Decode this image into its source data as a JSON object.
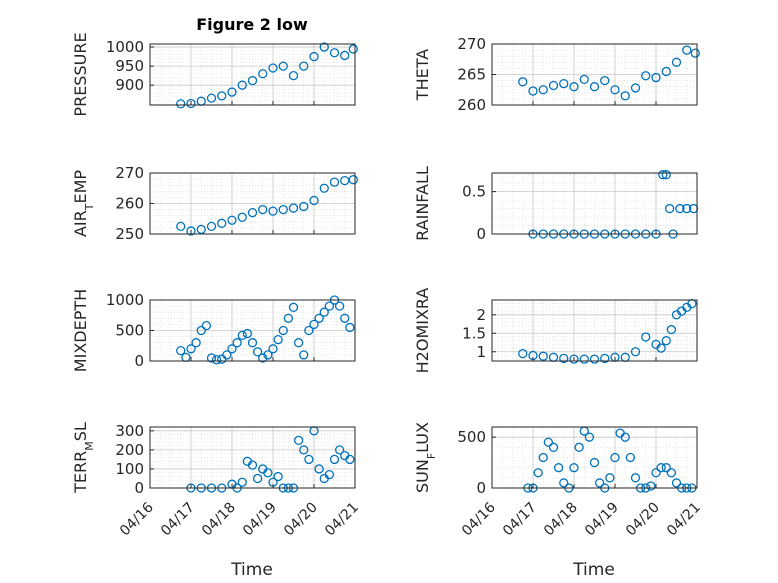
{
  "figure": {
    "title": "Figure 2 low",
    "xlabel": "Time",
    "date_ticks": [
      "04/16",
      "04/17",
      "04/18",
      "04/19",
      "04/20",
      "04/21"
    ],
    "marker_color": "#0072BD",
    "grid": true,
    "minor_grid": true
  },
  "chart_data": [
    {
      "type": "scatter",
      "ylabel": "PRESSURE",
      "xlim": [
        "2023-04-16",
        "2023-04-21"
      ],
      "ylim": [
        848,
        1008
      ],
      "yticks": [
        900,
        950,
        1000
      ],
      "x": [
        "04/16 18:00",
        "04/17 00:00",
        "04/17 06:00",
        "04/17 12:00",
        "04/17 18:00",
        "04/18 00:00",
        "04/18 06:00",
        "04/18 12:00",
        "04/18 18:00",
        "04/19 00:00",
        "04/19 06:00",
        "04/19 12:00",
        "04/19 18:00",
        "04/20 00:00",
        "04/20 06:00",
        "04/20 12:00",
        "04/20 18:00",
        "04/20 23:00"
      ],
      "y": [
        851,
        852,
        858,
        866,
        872,
        882,
        900,
        912,
        930,
        945,
        950,
        925,
        950,
        975,
        1000,
        985,
        978,
        995
      ]
    },
    {
      "type": "scatter",
      "ylabel": "THETA",
      "xlim": [
        "2023-04-16",
        "2023-04-21"
      ],
      "ylim": [
        260,
        270
      ],
      "yticks": [
        260,
        265,
        270
      ],
      "x": [
        "04/16 18:00",
        "04/17 00:00",
        "04/17 06:00",
        "04/17 12:00",
        "04/17 18:00",
        "04/18 00:00",
        "04/18 06:00",
        "04/18 12:00",
        "04/18 18:00",
        "04/19 00:00",
        "04/19 06:00",
        "04/19 12:00",
        "04/19 18:00",
        "04/20 00:00",
        "04/20 06:00",
        "04/20 12:00",
        "04/20 18:00",
        "04/20 23:00"
      ],
      "y": [
        263.8,
        262.3,
        262.5,
        263.2,
        263.5,
        263.0,
        264.2,
        263.0,
        264.0,
        262.5,
        261.5,
        262.8,
        264.8,
        264.5,
        265.5,
        267.0,
        269.0,
        268.5
      ]
    },
    {
      "type": "scatter",
      "ylabel": "AIR_TEMP",
      "xlim": [
        "2023-04-16",
        "2023-04-21"
      ],
      "ylim": [
        250,
        270
      ],
      "yticks": [
        250,
        260,
        270
      ],
      "x": [
        "04/16 18:00",
        "04/17 00:00",
        "04/17 06:00",
        "04/17 12:00",
        "04/17 18:00",
        "04/18 00:00",
        "04/18 06:00",
        "04/18 12:00",
        "04/18 18:00",
        "04/19 00:00",
        "04/19 06:00",
        "04/19 12:00",
        "04/19 18:00",
        "04/20 00:00",
        "04/20 06:00",
        "04/20 12:00",
        "04/20 18:00",
        "04/20 23:00"
      ],
      "y": [
        252.5,
        251.0,
        251.5,
        252.5,
        253.5,
        254.5,
        255.5,
        257.0,
        258.0,
        257.5,
        258.0,
        258.5,
        259.0,
        261.0,
        265.0,
        267.0,
        267.5,
        267.8
      ]
    },
    {
      "type": "scatter",
      "ylabel": "RAINFALL",
      "xlim": [
        "2023-04-16",
        "2023-04-21"
      ],
      "ylim": [
        0,
        0.72
      ],
      "yticks": [
        0,
        0.5
      ],
      "x": [
        "04/17 00:00",
        "04/17 06:00",
        "04/17 12:00",
        "04/17 18:00",
        "04/18 00:00",
        "04/18 06:00",
        "04/18 12:00",
        "04/18 18:00",
        "04/19 00:00",
        "04/19 06:00",
        "04/19 12:00",
        "04/19 18:00",
        "04/20 00:00",
        "04/20 04:00",
        "04/20 06:00",
        "04/20 08:00",
        "04/20 10:00",
        "04/20 14:00",
        "04/20 18:00",
        "04/20 22:00"
      ],
      "y": [
        0,
        0,
        0,
        0,
        0,
        0,
        0,
        0,
        0,
        0,
        0,
        0,
        0,
        0.7,
        0.7,
        0.3,
        0,
        0.3,
        0.3,
        0.3
      ]
    },
    {
      "type": "scatter",
      "ylabel": "MIXDEPTH",
      "xlim": [
        "2023-04-16",
        "2023-04-21"
      ],
      "ylim": [
        0,
        1000
      ],
      "yticks": [
        0,
        500,
        1000
      ],
      "x": [
        "04/16 18:00",
        "04/16 21:00",
        "04/17 00:00",
        "04/17 03:00",
        "04/17 06:00",
        "04/17 09:00",
        "04/17 12:00",
        "04/17 15:00",
        "04/17 18:00",
        "04/17 21:00",
        "04/18 00:00",
        "04/18 03:00",
        "04/18 06:00",
        "04/18 09:00",
        "04/18 12:00",
        "04/18 15:00",
        "04/18 18:00",
        "04/18 21:00",
        "04/19 00:00",
        "04/19 03:00",
        "04/19 06:00",
        "04/19 09:00",
        "04/19 12:00",
        "04/19 15:00",
        "04/19 18:00",
        "04/19 21:00",
        "04/20 00:00",
        "04/20 03:00",
        "04/20 06:00",
        "04/20 09:00",
        "04/20 12:00",
        "04/20 15:00",
        "04/20 18:00",
        "04/20 21:00"
      ],
      "y": [
        170,
        60,
        200,
        300,
        500,
        580,
        50,
        20,
        30,
        100,
        200,
        300,
        420,
        450,
        300,
        150,
        50,
        100,
        200,
        350,
        500,
        700,
        880,
        300,
        100,
        500,
        600,
        700,
        800,
        900,
        1000,
        900,
        700,
        550
      ]
    },
    {
      "type": "scatter",
      "ylabel": "H2OMIXRA",
      "xlim": [
        "2023-04-16",
        "2023-04-21"
      ],
      "ylim": [
        0.75,
        2.4
      ],
      "yticks": [
        1,
        1.5,
        2
      ],
      "x": [
        "04/16 18:00",
        "04/17 00:00",
        "04/17 06:00",
        "04/17 12:00",
        "04/17 18:00",
        "04/18 00:00",
        "04/18 06:00",
        "04/18 12:00",
        "04/18 18:00",
        "04/19 00:00",
        "04/19 06:00",
        "04/19 12:00",
        "04/19 18:00",
        "04/20 00:00",
        "04/20 03:00",
        "04/20 06:00",
        "04/20 09:00",
        "04/20 12:00",
        "04/20 15:00",
        "04/20 18:00",
        "04/20 21:00"
      ],
      "y": [
        0.95,
        0.9,
        0.88,
        0.85,
        0.82,
        0.8,
        0.8,
        0.8,
        0.82,
        0.85,
        0.85,
        1.0,
        1.4,
        1.2,
        1.1,
        1.3,
        1.6,
        2.0,
        2.1,
        2.2,
        2.3
      ]
    },
    {
      "type": "scatter",
      "ylabel": "TERR_MSL",
      "xlim": [
        "2023-04-16",
        "2023-04-21"
      ],
      "ylim": [
        0,
        320
      ],
      "yticks": [
        0,
        100,
        200,
        300
      ],
      "x": [
        "04/17 00:00",
        "04/17 06:00",
        "04/17 12:00",
        "04/17 18:00",
        "04/18 00:00",
        "04/18 03:00",
        "04/18 06:00",
        "04/18 09:00",
        "04/18 12:00",
        "04/18 15:00",
        "04/18 18:00",
        "04/18 21:00",
        "04/19 00:00",
        "04/19 03:00",
        "04/19 06:00",
        "04/19 09:00",
        "04/19 12:00",
        "04/19 15:00",
        "04/19 18:00",
        "04/19 21:00",
        "04/20 00:00",
        "04/20 03:00",
        "04/20 06:00",
        "04/20 09:00",
        "04/20 12:00",
        "04/20 15:00",
        "04/20 18:00",
        "04/20 21:00"
      ],
      "y": [
        0,
        0,
        0,
        0,
        20,
        0,
        30,
        140,
        120,
        50,
        100,
        80,
        30,
        60,
        0,
        0,
        0,
        250,
        200,
        150,
        300,
        100,
        50,
        70,
        150,
        200,
        170,
        150
      ]
    },
    {
      "type": "scatter",
      "ylabel": "SUN_FLUX",
      "xlim": [
        "2023-04-16",
        "2023-04-21"
      ],
      "ylim": [
        0,
        600
      ],
      "yticks": [
        0,
        500
      ],
      "x": [
        "04/16 21:00",
        "04/17 00:00",
        "04/17 03:00",
        "04/17 06:00",
        "04/17 09:00",
        "04/17 12:00",
        "04/17 15:00",
        "04/17 18:00",
        "04/17 21:00",
        "04/18 00:00",
        "04/18 03:00",
        "04/18 06:00",
        "04/18 09:00",
        "04/18 12:00",
        "04/18 15:00",
        "04/18 18:00",
        "04/18 21:00",
        "04/19 00:00",
        "04/19 03:00",
        "04/19 06:00",
        "04/19 09:00",
        "04/19 12:00",
        "04/19 15:00",
        "04/19 18:00",
        "04/19 21:00",
        "04/20 00:00",
        "04/20 03:00",
        "04/20 06:00",
        "04/20 09:00",
        "04/20 12:00",
        "04/20 15:00",
        "04/20 18:00",
        "04/20 21:00"
      ],
      "y": [
        0,
        0,
        150,
        300,
        450,
        400,
        200,
        50,
        0,
        200,
        400,
        560,
        500,
        250,
        50,
        0,
        100,
        300,
        540,
        500,
        300,
        100,
        0,
        0,
        20,
        150,
        200,
        200,
        150,
        50,
        0,
        0,
        0
      ]
    }
  ]
}
